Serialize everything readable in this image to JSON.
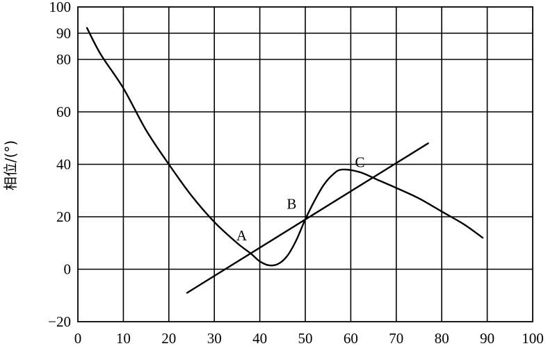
{
  "chart_data": {
    "type": "line",
    "title": "",
    "xlabel": "",
    "ylabel": "相位/(°)",
    "xlim": [
      0,
      100
    ],
    "ylim": [
      -20,
      100
    ],
    "x_ticks": [
      0,
      10,
      20,
      30,
      40,
      50,
      60,
      70,
      80,
      90,
      100
    ],
    "x_tick_labels": [
      "0",
      "10",
      "20",
      "30",
      "40",
      "50",
      "60",
      "70",
      "80",
      "90",
      "100"
    ],
    "y_ticks": [
      -20,
      0,
      20,
      40,
      60,
      80,
      90,
      100
    ],
    "y_tick_labels": [
      "−20",
      "0",
      "20",
      "40",
      "60",
      "80",
      "90",
      "100"
    ],
    "grid": true,
    "legend": "none",
    "series": [
      {
        "points": [
          [
            2,
            92
          ],
          [
            5,
            82
          ],
          [
            10,
            69
          ],
          [
            15,
            53
          ],
          [
            20,
            40
          ],
          [
            25,
            28
          ],
          [
            30,
            18
          ],
          [
            35,
            10
          ],
          [
            38,
            6
          ],
          [
            40,
            3
          ],
          [
            42,
            1.5
          ],
          [
            44,
            2
          ],
          [
            46,
            5
          ],
          [
            48,
            11
          ],
          [
            50,
            19
          ],
          [
            52,
            26
          ],
          [
            54,
            32
          ],
          [
            56,
            36
          ],
          [
            58,
            38
          ],
          [
            62,
            37
          ],
          [
            66,
            34
          ],
          [
            70,
            31
          ],
          [
            75,
            27
          ],
          [
            80,
            22
          ],
          [
            85,
            17
          ],
          [
            89,
            12
          ]
        ]
      },
      {
        "points": [
          [
            24,
            -9
          ],
          [
            77,
            48
          ]
        ]
      }
    ],
    "annotations": [
      {
        "text": "A",
        "x": 36,
        "y": 11
      },
      {
        "text": "B",
        "x": 47,
        "y": 23
      },
      {
        "text": "C",
        "x": 62,
        "y": 39
      }
    ]
  }
}
